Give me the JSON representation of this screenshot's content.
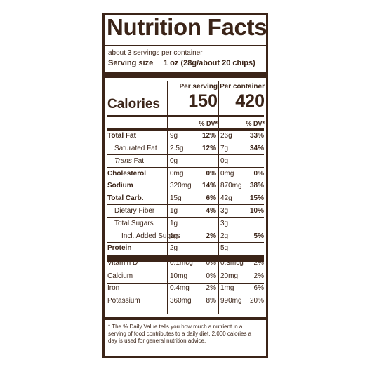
{
  "label": {
    "title": "Nutrition Facts",
    "servings_per_container": "about 3 servings per container",
    "serving_size_label": "Serving size",
    "serving_size_value": "1 oz (28g/about 20 chips)",
    "per_serving_label": "Per serving",
    "per_container_label": "Per container",
    "calories_label": "Calories",
    "calories_per_serving": "150",
    "calories_per_container": "420",
    "dv_header": "% DV*",
    "nutrients": [
      {
        "name": "Total Fat",
        "ps_amount": "9g",
        "ps_dv": "12%",
        "pc_amount": "26g",
        "pc_dv": "33%"
      },
      {
        "name": "Saturated Fat",
        "ps_amount": "2.5g",
        "ps_dv": "12%",
        "pc_amount": "7g",
        "pc_dv": "34%"
      },
      {
        "name_italic": "Trans",
        "name_rest": " Fat",
        "ps_amount": "0g",
        "ps_dv": "",
        "pc_amount": "0g",
        "pc_dv": ""
      },
      {
        "name": "Cholesterol",
        "ps_amount": "0mg",
        "ps_dv": "0%",
        "pc_amount": "0mg",
        "pc_dv": "0%"
      },
      {
        "name": "Sodium",
        "ps_amount": "320mg",
        "ps_dv": "14%",
        "pc_amount": "870mg",
        "pc_dv": "38%"
      },
      {
        "name": "Total Carb.",
        "ps_amount": "15g",
        "ps_dv": "6%",
        "pc_amount": "42g",
        "pc_dv": "15%"
      },
      {
        "name": "Dietary Fiber",
        "ps_amount": "1g",
        "ps_dv": "4%",
        "pc_amount": "3g",
        "pc_dv": "10%"
      },
      {
        "name": "Total Sugars",
        "ps_amount": "1g",
        "ps_dv": "",
        "pc_amount": "3g",
        "pc_dv": ""
      },
      {
        "name": "Incl. Added Sugars",
        "ps_amount": "1g",
        "ps_dv": "2%",
        "pc_amount": "2g",
        "pc_dv": "5%"
      },
      {
        "name": "Protein",
        "ps_amount": "2g",
        "ps_dv": "",
        "pc_amount": "5g",
        "pc_dv": ""
      }
    ],
    "vitamins": [
      {
        "name": "Vitamin D",
        "ps_amount": "0.1mcg",
        "ps_dv": "0%",
        "pc_amount": "0.3mcg",
        "pc_dv": "2%"
      },
      {
        "name": "Calcium",
        "ps_amount": "10mg",
        "ps_dv": "0%",
        "pc_amount": "20mg",
        "pc_dv": "2%"
      },
      {
        "name": "Iron",
        "ps_amount": "0.4mg",
        "ps_dv": "2%",
        "pc_amount": "1mg",
        "pc_dv": "6%"
      },
      {
        "name": "Potassium",
        "ps_amount": "360mg",
        "ps_dv": "8%",
        "pc_amount": "990mg",
        "pc_dv": "20%"
      }
    ],
    "footnote": "* The % Daily Value tells you how much a nutrient in a serving of food contributes to a daily diet. 2,000 calories a day is used for general nutrition advice.",
    "ink_color": "#3b2418"
  }
}
